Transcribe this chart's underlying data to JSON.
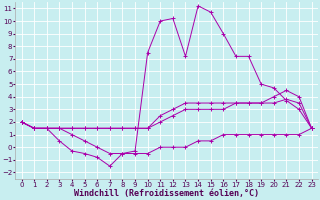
{
  "background_color": "#c8eef0",
  "grid_color": "#ffffff",
  "line_color": "#aa00aa",
  "xlabel": "Windchill (Refroidissement éolien,°C)",
  "xlabel_fontsize": 6.0,
  "xlim": [
    -0.5,
    23.5
  ],
  "ylim": [
    -2.5,
    11.5
  ],
  "xticks": [
    0,
    1,
    2,
    3,
    4,
    5,
    6,
    7,
    8,
    9,
    10,
    11,
    12,
    13,
    14,
    15,
    16,
    17,
    18,
    19,
    20,
    21,
    22,
    23
  ],
  "yticks": [
    -2,
    -1,
    0,
    1,
    2,
    3,
    4,
    5,
    6,
    7,
    8,
    9,
    10,
    11
  ],
  "tick_fontsize": 5.0,
  "lines": [
    {
      "x": [
        0,
        1,
        2,
        3,
        4,
        5,
        6,
        7,
        8,
        9,
        10,
        11,
        12,
        13,
        14,
        15,
        16,
        17,
        18,
        19,
        20,
        21,
        22,
        23
      ],
      "y": [
        2,
        1.5,
        1.5,
        1.5,
        1,
        0.5,
        0,
        -0.5,
        -0.5,
        -0.3,
        7.5,
        10,
        10.2,
        7.2,
        11.2,
        10.7,
        9,
        7.2,
        7.2,
        5,
        4.7,
        3.7,
        3,
        1.5
      ]
    },
    {
      "x": [
        0,
        1,
        2,
        3,
        4,
        5,
        6,
        7,
        8,
        9,
        10,
        11,
        12,
        13,
        14,
        15,
        16,
        17,
        18,
        19,
        20,
        21,
        22,
        23
      ],
      "y": [
        2,
        1.5,
        1.5,
        1.5,
        1.5,
        1.5,
        1.5,
        1.5,
        1.5,
        1.5,
        1.5,
        2.5,
        3,
        3.5,
        3.5,
        3.5,
        3.5,
        3.5,
        3.5,
        3.5,
        4.0,
        4.5,
        4.0,
        1.5
      ]
    },
    {
      "x": [
        0,
        1,
        2,
        3,
        4,
        5,
        6,
        7,
        8,
        9,
        10,
        11,
        12,
        13,
        14,
        15,
        16,
        17,
        18,
        19,
        20,
        21,
        22,
        23
      ],
      "y": [
        2,
        1.5,
        1.5,
        1.5,
        1.5,
        1.5,
        1.5,
        1.5,
        1.5,
        1.5,
        1.5,
        2,
        2.5,
        3,
        3,
        3,
        3,
        3.5,
        3.5,
        3.5,
        3.5,
        3.8,
        3.5,
        1.5
      ]
    },
    {
      "x": [
        0,
        1,
        2,
        3,
        4,
        5,
        6,
        7,
        8,
        9,
        10,
        11,
        12,
        13,
        14,
        15,
        16,
        17,
        18,
        19,
        20,
        21,
        22,
        23
      ],
      "y": [
        2,
        1.5,
        1.5,
        0.5,
        -0.3,
        -0.5,
        -0.8,
        -1.5,
        -0.5,
        -0.5,
        -0.5,
        0,
        0,
        0,
        0.5,
        0.5,
        1,
        1,
        1,
        1,
        1,
        1,
        1,
        1.5
      ]
    }
  ]
}
